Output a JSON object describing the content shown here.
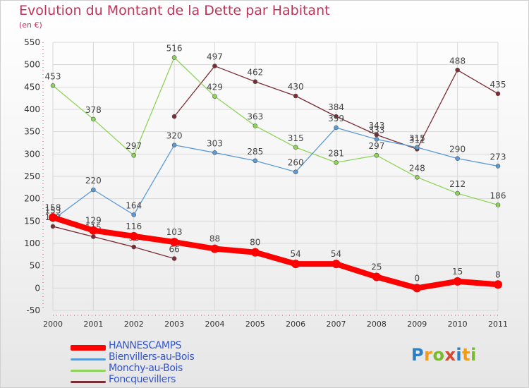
{
  "header": {
    "title": "Evolution du Montant de la Dette par Habitant",
    "subtitle": "(en €)"
  },
  "brand": {
    "text": "Proxiti"
  },
  "chart_data": {
    "type": "line",
    "title": "Evolution du Montant de la Dette par Habitant",
    "subtitle": "(en €)",
    "xlabel": "",
    "ylabel": "",
    "categories": [
      "2000",
      "2001",
      "2002",
      "2003",
      "2004",
      "2005",
      "2006",
      "2007",
      "2008",
      "2009",
      "2010",
      "2011"
    ],
    "ylim": [
      -50,
      550
    ],
    "yticks": [
      -50,
      0,
      50,
      100,
      150,
      200,
      250,
      300,
      350,
      400,
      450,
      500,
      550
    ],
    "grid": true,
    "legend_position": "bottom-left",
    "series": [
      {
        "name": "HANNESCAMPS",
        "color": "#ff0000",
        "legend_text_color": "#3355cc",
        "values": [
          158,
          129,
          116,
          103,
          88,
          80,
          54,
          54,
          25,
          0,
          15,
          8
        ],
        "labels": [
          "158",
          "129",
          "116",
          "103",
          "88",
          "80",
          "54",
          "54",
          "25",
          "0",
          "15",
          "8"
        ]
      },
      {
        "name": "Bienvillers-au-Bois",
        "color": "#5b9bd5",
        "legend_text_color": "#3355cc",
        "values": [
          153,
          220,
          164,
          320,
          303,
          285,
          260,
          359,
          333,
          315,
          290,
          273
        ],
        "labels": [
          "153",
          "220",
          "164",
          "320",
          "303",
          "285",
          "260",
          "359",
          "333",
          "315",
          "290",
          "273"
        ]
      },
      {
        "name": "Monchy-au-Bois",
        "color": "#8fd45a",
        "legend_text_color": "#3355cc",
        "values": [
          453,
          378,
          297,
          516,
          429,
          363,
          315,
          281,
          297,
          248,
          212,
          186
        ],
        "labels": [
          "453",
          "378",
          "297",
          "516",
          "429",
          "363",
          "315",
          "281",
          "297",
          "248",
          "212",
          "186"
        ]
      },
      {
        "name": "Foncquevillers",
        "color": "#7b2d35",
        "legend_text_color": "#3355cc",
        "segments": [
          {
            "x": [
              "2000",
              "2001",
              "2002",
              "2003"
            ],
            "values": [
              138,
              115,
              92,
              66
            ],
            "labels": [
              "138",
              "115",
              "92",
              "66"
            ]
          },
          {
            "x": [
              "2003",
              "2004",
              "2005",
              "2006",
              "2007",
              "2008",
              "2009",
              "2010",
              "2011"
            ],
            "values": [
              384,
              497,
              462,
              430,
              384,
              343,
              311,
              488,
              435
            ],
            "labels": [
              "",
              "497",
              "462",
              "430",
              "384",
              "343",
              "311",
              "488",
              "435"
            ]
          }
        ]
      }
    ]
  }
}
